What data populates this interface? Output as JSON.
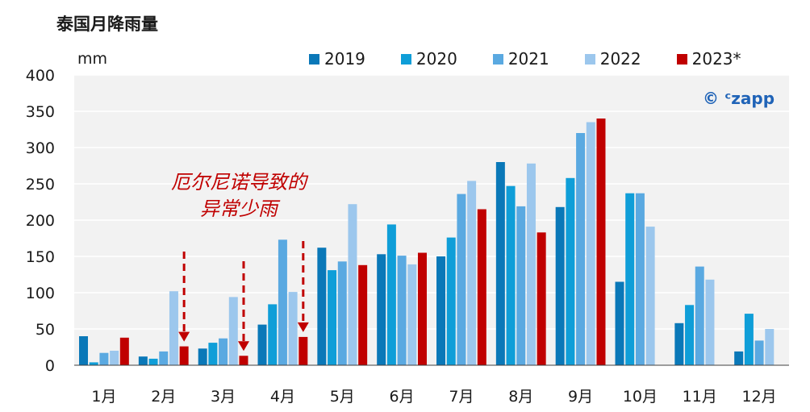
{
  "title": "泰国月降雨量",
  "unit": "mm",
  "brand": "© ᶜzapp",
  "annotation": {
    "line1": "厄尔尼诺导致的",
    "line2": "异常少雨"
  },
  "chart_data": {
    "type": "bar",
    "title": "泰国月降雨量",
    "ylabel": "mm",
    "xlabel": "",
    "ylim": [
      0,
      400
    ],
    "yticks": [
      0,
      50,
      100,
      150,
      200,
      250,
      300,
      350,
      400
    ],
    "grid": true,
    "legend_position": "top",
    "categories": [
      "1月",
      "2月",
      "3月",
      "4月",
      "5月",
      "6月",
      "7月",
      "8月",
      "9月",
      "10月",
      "11月",
      "12月"
    ],
    "series": [
      {
        "name": "2019",
        "color": "#0a78b8",
        "values": [
          40,
          12,
          23,
          56,
          162,
          153,
          150,
          280,
          218,
          115,
          58,
          19
        ]
      },
      {
        "name": "2020",
        "color": "#0f9ed8",
        "values": [
          4,
          9,
          31,
          84,
          131,
          194,
          176,
          247,
          258,
          237,
          83,
          71
        ]
      },
      {
        "name": "2021",
        "color": "#5aa9e1",
        "values": [
          17,
          19,
          37,
          173,
          143,
          151,
          236,
          219,
          320,
          237,
          136,
          34
        ]
      },
      {
        "name": "2022",
        "color": "#9cc7ed",
        "values": [
          20,
          102,
          94,
          101,
          222,
          139,
          254,
          278,
          335,
          191,
          118,
          50
        ]
      },
      {
        "name": "2023*",
        "color": "#c00000",
        "values": [
          38,
          26,
          13,
          39,
          138,
          155,
          215,
          183,
          340,
          null,
          null,
          null
        ]
      }
    ],
    "highlight_months": [
      "2月",
      "3月",
      "4月"
    ]
  }
}
